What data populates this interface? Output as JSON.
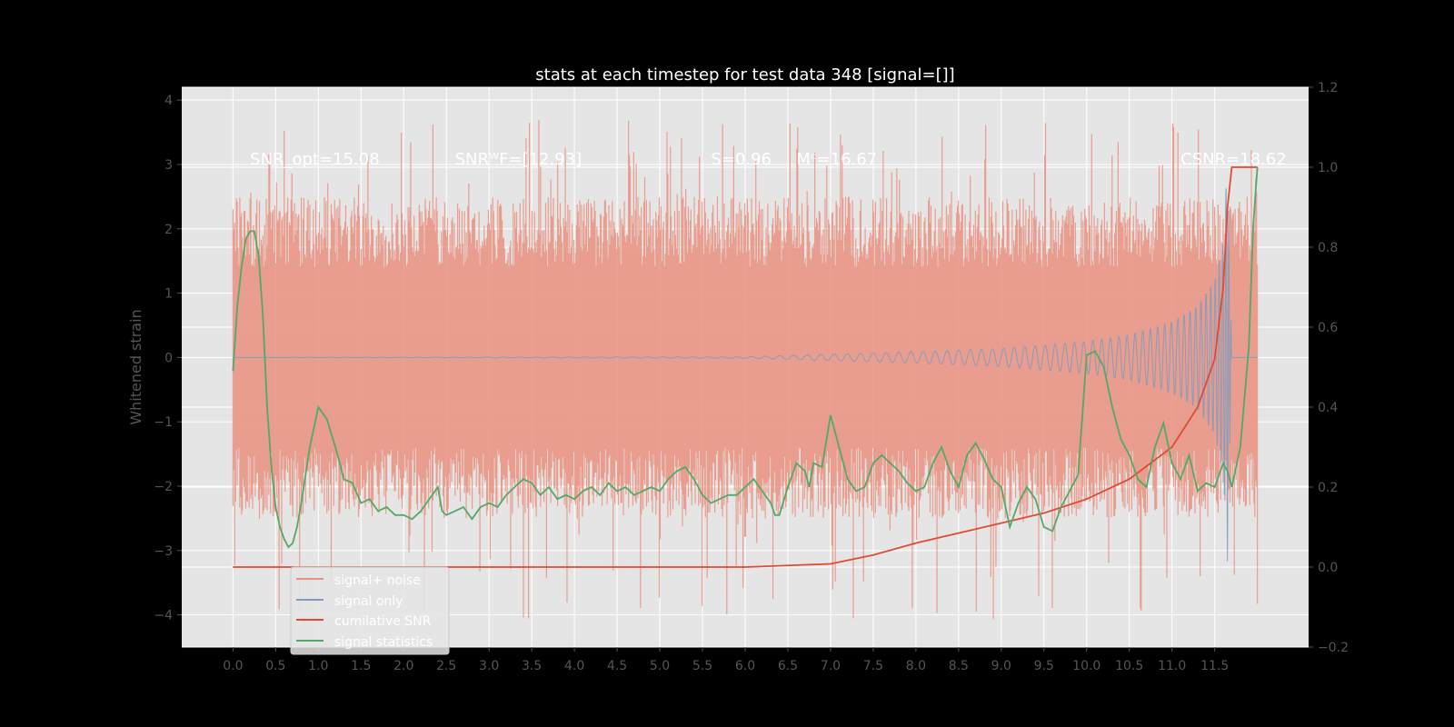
{
  "chart_data": {
    "type": "line",
    "title": "stats at each timestep for test data 348 [signal=[]]",
    "ylabel": "Whitened strain",
    "xlim": [
      -0.6,
      12.6
    ],
    "ylim": [
      -4.5,
      4.2
    ],
    "y2lim": [
      -0.2,
      1.2
    ],
    "xticks": [
      0.0,
      0.5,
      1.0,
      1.5,
      2.0,
      2.5,
      3.0,
      3.5,
      4.0,
      4.5,
      5.0,
      5.5,
      6.0,
      6.5,
      7.0,
      7.5,
      8.0,
      8.5,
      9.0,
      9.5,
      10.0,
      10.5,
      11.0,
      11.5
    ],
    "xtick_labels": [
      "0.0",
      "0.5",
      "1.0",
      "1.5",
      "2.0",
      "2.5",
      "3.0",
      "3.5",
      "4.0",
      "4.5",
      "5.0",
      "5.5",
      "6.0",
      "6.5",
      "7.0",
      "7.5",
      "8.0",
      "8.5",
      "9.0",
      "9.5",
      "10.0",
      "10.5",
      "11.0",
      "11.5"
    ],
    "yticks": [
      -4,
      -3,
      -2,
      -1,
      0,
      1,
      2,
      3,
      4
    ],
    "ytick_labels": [
      "−4",
      "−3",
      "−2",
      "−1",
      "0",
      "1",
      "2",
      "3",
      "4"
    ],
    "y2ticks": [
      -0.2,
      0.0,
      0.2,
      0.4,
      0.6,
      0.8,
      1.0,
      1.2
    ],
    "y2tick_labels": [
      "−0.2",
      "0.0",
      "0.2",
      "0.4",
      "0.6",
      "0.8",
      "1.0",
      "1.2"
    ],
    "grid": true,
    "legend_placement": "lower-left",
    "annotations": [
      {
        "text": "SNR_opt=15.08",
        "x": 0.2,
        "y": 3.0
      },
      {
        "text": "SNRᵂF=[12.93]",
        "x": 2.6,
        "y": 3.0
      },
      {
        "text": "S=0.96",
        "x": 5.6,
        "y": 3.0
      },
      {
        "text": "Mᶜ=16.67",
        "x": 6.6,
        "y": 3.0
      },
      {
        "text": "CSNR=18.62",
        "x": 11.1,
        "y": 3.0
      }
    ],
    "series": [
      {
        "name": "signal+ noise",
        "color": "#E9907F",
        "axis": "left",
        "x_start": 0.0,
        "x_end": 12.0,
        "envelope_upper": 1.4,
        "envelope_lower": -1.4,
        "peak_range": [
          -4.1,
          3.8
        ]
      },
      {
        "name": "signal only",
        "color": "#7D9CC0",
        "axis": "left",
        "amplitude_points": [
          [
            0.0,
            0.0
          ],
          [
            6.0,
            0.01
          ],
          [
            7.0,
            0.05
          ],
          [
            8.0,
            0.09
          ],
          [
            9.0,
            0.14
          ],
          [
            10.0,
            0.25
          ],
          [
            10.5,
            0.35
          ],
          [
            11.0,
            0.55
          ],
          [
            11.3,
            0.8
          ],
          [
            11.5,
            1.2
          ],
          [
            11.6,
            1.8
          ],
          [
            11.65,
            3.2
          ],
          [
            11.7,
            0.0
          ],
          [
            12.0,
            0.0
          ]
        ]
      },
      {
        "name": "cumilative SNR",
        "color": "#E24A33",
        "axis": "right",
        "points": [
          [
            0.0,
            0.0
          ],
          [
            6.0,
            0.0
          ],
          [
            7.0,
            0.008
          ],
          [
            7.5,
            0.03
          ],
          [
            8.0,
            0.06
          ],
          [
            8.5,
            0.085
          ],
          [
            9.0,
            0.11
          ],
          [
            9.5,
            0.135
          ],
          [
            10.0,
            0.17
          ],
          [
            10.5,
            0.22
          ],
          [
            11.0,
            0.3
          ],
          [
            11.3,
            0.4
          ],
          [
            11.5,
            0.52
          ],
          [
            11.6,
            0.7
          ],
          [
            11.65,
            0.9
          ],
          [
            11.7,
            1.0
          ],
          [
            12.0,
            1.0
          ]
        ]
      },
      {
        "name": "signal statistics",
        "color": "#55A868",
        "axis": "right",
        "points": [
          [
            0.0,
            0.49
          ],
          [
            0.05,
            0.65
          ],
          [
            0.1,
            0.75
          ],
          [
            0.15,
            0.82
          ],
          [
            0.2,
            0.84
          ],
          [
            0.25,
            0.84
          ],
          [
            0.3,
            0.78
          ],
          [
            0.35,
            0.63
          ],
          [
            0.4,
            0.4
          ],
          [
            0.45,
            0.25
          ],
          [
            0.5,
            0.15
          ],
          [
            0.55,
            0.1
          ],
          [
            0.6,
            0.07
          ],
          [
            0.65,
            0.05
          ],
          [
            0.7,
            0.06
          ],
          [
            0.75,
            0.1
          ],
          [
            0.8,
            0.16
          ],
          [
            0.9,
            0.3
          ],
          [
            1.0,
            0.4
          ],
          [
            1.1,
            0.37
          ],
          [
            1.2,
            0.3
          ],
          [
            1.3,
            0.22
          ],
          [
            1.4,
            0.21
          ],
          [
            1.5,
            0.16
          ],
          [
            1.6,
            0.17
          ],
          [
            1.7,
            0.14
          ],
          [
            1.8,
            0.15
          ],
          [
            1.9,
            0.13
          ],
          [
            2.0,
            0.13
          ],
          [
            2.1,
            0.12
          ],
          [
            2.2,
            0.14
          ],
          [
            2.3,
            0.17
          ],
          [
            2.4,
            0.2
          ],
          [
            2.45,
            0.14
          ],
          [
            2.5,
            0.13
          ],
          [
            2.6,
            0.14
          ],
          [
            2.7,
            0.15
          ],
          [
            2.8,
            0.12
          ],
          [
            2.9,
            0.15
          ],
          [
            3.0,
            0.16
          ],
          [
            3.1,
            0.15
          ],
          [
            3.2,
            0.18
          ],
          [
            3.3,
            0.2
          ],
          [
            3.4,
            0.22
          ],
          [
            3.5,
            0.21
          ],
          [
            3.6,
            0.18
          ],
          [
            3.7,
            0.2
          ],
          [
            3.8,
            0.17
          ],
          [
            3.9,
            0.18
          ],
          [
            4.0,
            0.17
          ],
          [
            4.1,
            0.19
          ],
          [
            4.2,
            0.2
          ],
          [
            4.3,
            0.18
          ],
          [
            4.4,
            0.21
          ],
          [
            4.5,
            0.19
          ],
          [
            4.6,
            0.2
          ],
          [
            4.7,
            0.18
          ],
          [
            4.8,
            0.19
          ],
          [
            4.9,
            0.2
          ],
          [
            5.0,
            0.19
          ],
          [
            5.1,
            0.22
          ],
          [
            5.2,
            0.24
          ],
          [
            5.3,
            0.25
          ],
          [
            5.4,
            0.22
          ],
          [
            5.5,
            0.18
          ],
          [
            5.6,
            0.16
          ],
          [
            5.7,
            0.17
          ],
          [
            5.8,
            0.18
          ],
          [
            5.9,
            0.18
          ],
          [
            6.0,
            0.2
          ],
          [
            6.1,
            0.22
          ],
          [
            6.2,
            0.19
          ],
          [
            6.3,
            0.16
          ],
          [
            6.35,
            0.13
          ],
          [
            6.4,
            0.13
          ],
          [
            6.5,
            0.2
          ],
          [
            6.6,
            0.26
          ],
          [
            6.7,
            0.24
          ],
          [
            6.75,
            0.2
          ],
          [
            6.8,
            0.26
          ],
          [
            6.9,
            0.25
          ],
          [
            7.0,
            0.38
          ],
          [
            7.1,
            0.3
          ],
          [
            7.2,
            0.22
          ],
          [
            7.3,
            0.19
          ],
          [
            7.4,
            0.2
          ],
          [
            7.5,
            0.26
          ],
          [
            7.6,
            0.28
          ],
          [
            7.7,
            0.26
          ],
          [
            7.8,
            0.24
          ],
          [
            7.9,
            0.21
          ],
          [
            8.0,
            0.19
          ],
          [
            8.1,
            0.2
          ],
          [
            8.2,
            0.26
          ],
          [
            8.3,
            0.3
          ],
          [
            8.4,
            0.24
          ],
          [
            8.5,
            0.2
          ],
          [
            8.6,
            0.28
          ],
          [
            8.7,
            0.31
          ],
          [
            8.8,
            0.27
          ],
          [
            8.9,
            0.22
          ],
          [
            9.0,
            0.2
          ],
          [
            9.1,
            0.1
          ],
          [
            9.2,
            0.16
          ],
          [
            9.3,
            0.2
          ],
          [
            9.4,
            0.17
          ],
          [
            9.5,
            0.1
          ],
          [
            9.6,
            0.09
          ],
          [
            9.7,
            0.15
          ],
          [
            9.8,
            0.19
          ],
          [
            9.9,
            0.23
          ],
          [
            10.0,
            0.53
          ],
          [
            10.1,
            0.54
          ],
          [
            10.2,
            0.5
          ],
          [
            10.3,
            0.4
          ],
          [
            10.4,
            0.32
          ],
          [
            10.5,
            0.28
          ],
          [
            10.6,
            0.22
          ],
          [
            10.7,
            0.2
          ],
          [
            10.8,
            0.3
          ],
          [
            10.9,
            0.36
          ],
          [
            11.0,
            0.26
          ],
          [
            11.1,
            0.22
          ],
          [
            11.2,
            0.28
          ],
          [
            11.3,
            0.19
          ],
          [
            11.4,
            0.21
          ],
          [
            11.5,
            0.2
          ],
          [
            11.6,
            0.26
          ],
          [
            11.65,
            0.24
          ],
          [
            11.7,
            0.2
          ],
          [
            11.8,
            0.3
          ],
          [
            11.9,
            0.55
          ],
          [
            11.95,
            0.85
          ],
          [
            12.0,
            1.0
          ]
        ]
      }
    ]
  }
}
